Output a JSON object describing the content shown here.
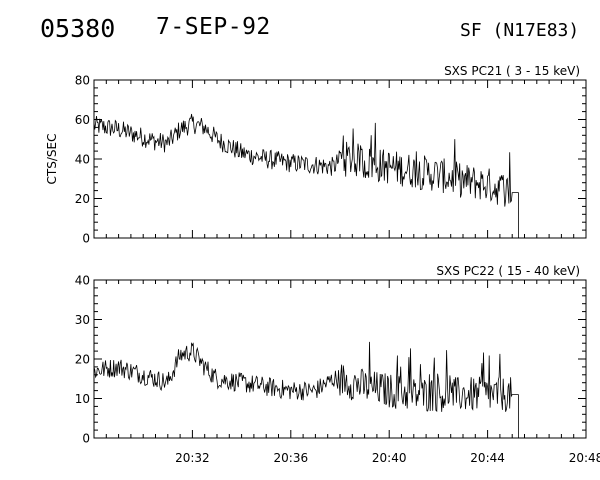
{
  "header": {
    "event_id": "05380",
    "date": "7-SEP-92",
    "location": "SF (N17E83)"
  },
  "chart_data": [
    {
      "type": "line",
      "title": "SXS PC21   (  3 - 15 keV)",
      "ylabel": "CTS/SEC",
      "xlabel": "",
      "ylim": [
        0,
        80
      ],
      "yticks": [
        "0",
        "20",
        "40",
        "60",
        "80"
      ],
      "xlim": [
        "20:28",
        "20:48"
      ],
      "xticks": [
        "20:32",
        "20:36",
        "20:40",
        "20:44",
        "20:48"
      ],
      "xtick_labels_visible": false,
      "series": [
        {
          "x": [
            "20:28:00",
            "20:29:00",
            "20:30:00",
            "20:30:30",
            "20:31:00",
            "20:31:30",
            "20:32:00",
            "20:32:30",
            "20:33:00",
            "20:34:00",
            "20:35:00",
            "20:36:00",
            "20:37:00",
            "20:37:45",
            "20:38:00",
            "20:38:30",
            "20:39:00",
            "20:40:00",
            "20:41:00",
            "20:42:00",
            "20:43:00",
            "20:44:00",
            "20:44:30",
            "20:45:00",
            "20:45:15"
          ],
          "y": [
            57,
            55,
            51,
            49,
            48,
            55,
            58,
            56,
            50,
            43,
            40,
            38,
            37,
            36,
            40,
            40,
            38,
            36,
            34,
            32,
            29,
            27,
            25,
            23,
            0
          ]
        }
      ]
    },
    {
      "type": "line",
      "title": "SXS PC22   ( 15 - 40 keV)",
      "ylabel": "",
      "xlabel": "",
      "ylim": [
        0,
        40
      ],
      "yticks": [
        "0",
        "10",
        "20",
        "30",
        "40"
      ],
      "xlim": [
        "20:28",
        "20:48"
      ],
      "xticks": [
        "20:32",
        "20:36",
        "20:40",
        "20:44",
        "20:48"
      ],
      "xtick_labels_visible": true,
      "series": [
        {
          "x": [
            "20:28:00",
            "20:29:00",
            "20:30:00",
            "20:30:30",
            "20:31:00",
            "20:31:30",
            "20:32:00",
            "20:32:30",
            "20:33:00",
            "20:34:00",
            "20:35:00",
            "20:36:00",
            "20:37:00",
            "20:37:45",
            "20:38:00",
            "20:38:30",
            "20:39:00",
            "20:40:00",
            "20:41:00",
            "20:42:00",
            "20:43:00",
            "20:44:00",
            "20:44:30",
            "20:45:00",
            "20:45:15"
          ],
          "y": [
            17,
            18,
            16,
            15,
            14,
            21,
            22,
            18,
            15,
            14,
            13,
            12,
            12,
            15,
            15,
            14,
            13,
            12,
            11,
            11,
            11,
            11,
            11,
            11,
            0
          ]
        }
      ]
    }
  ]
}
